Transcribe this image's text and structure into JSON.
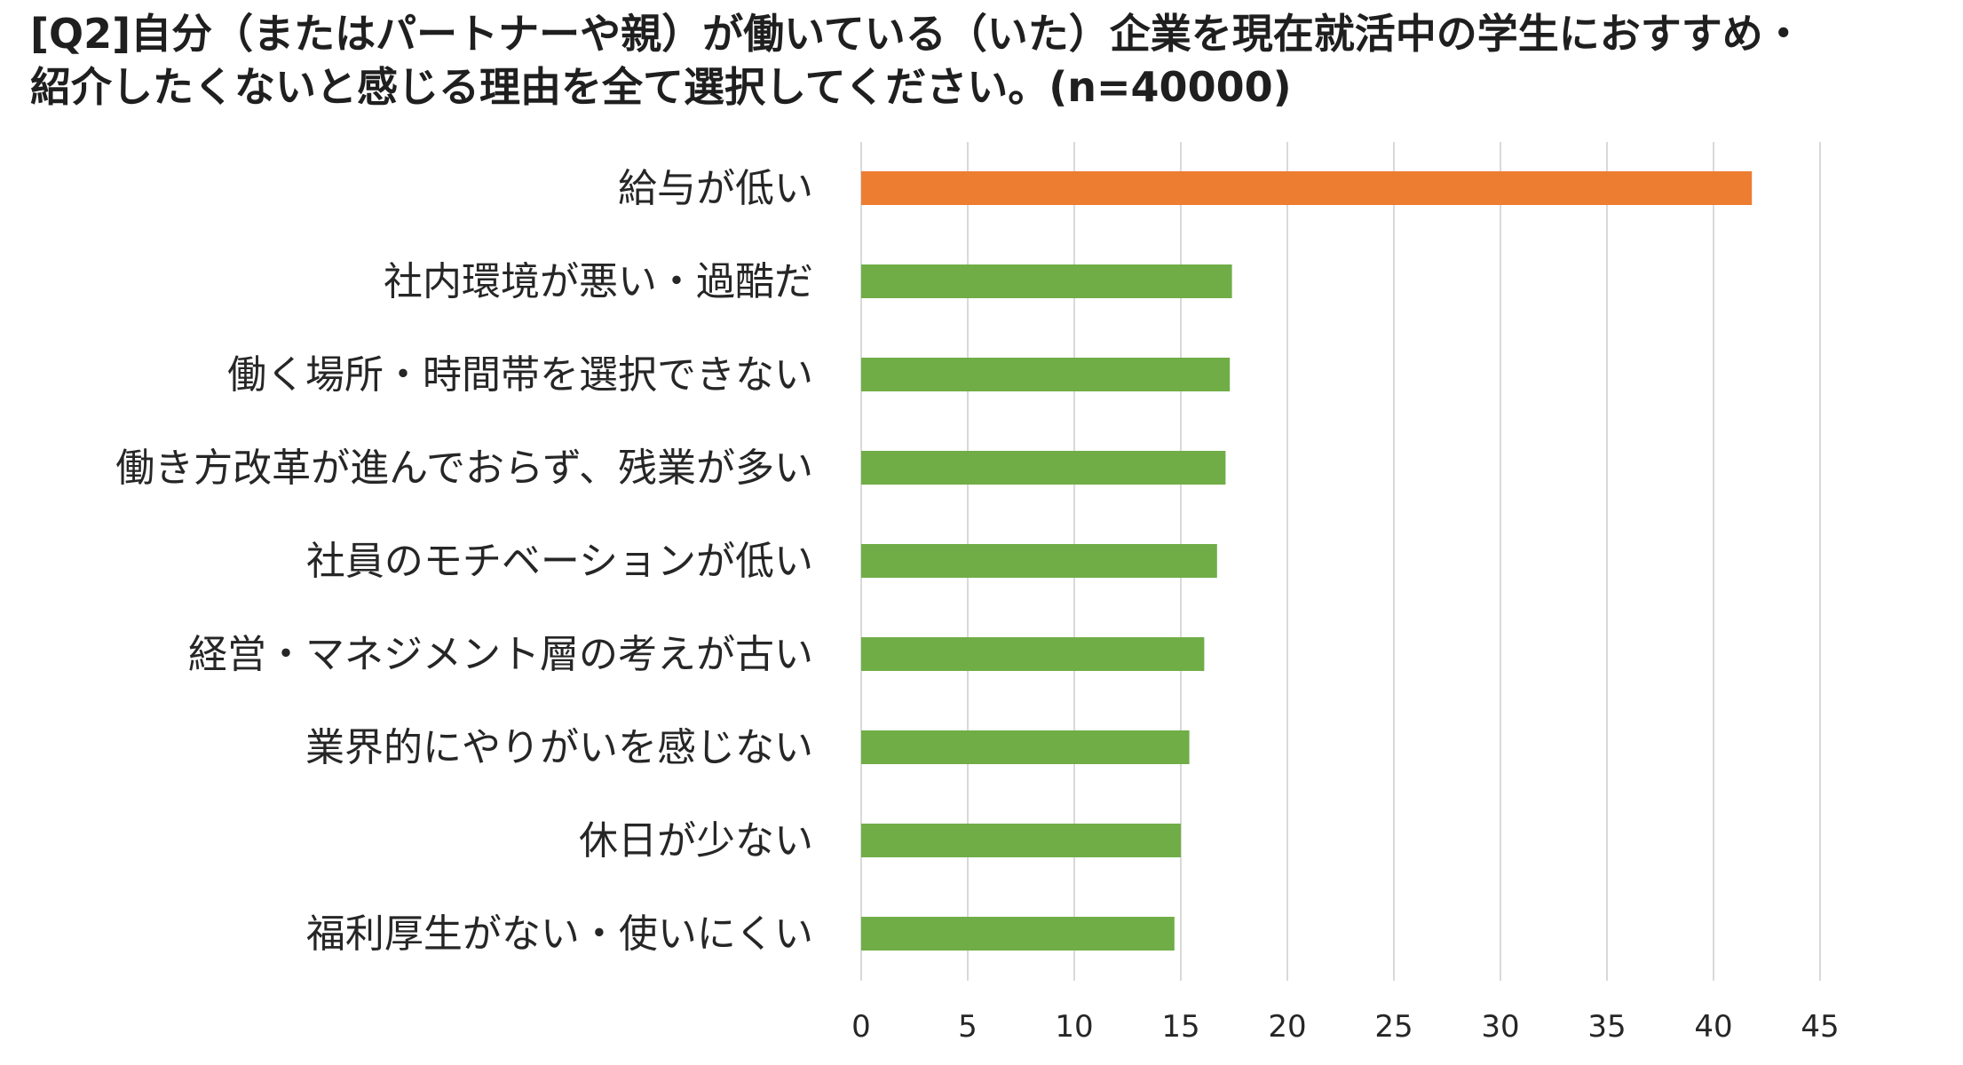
{
  "title": {
    "line1": "[Q2]自分（またはパートナーや親）が働いている（いた）企業を現在就活中の学生におすすめ・",
    "line2": "紹介したくないと感じる理由を全て選択してください。(n=40000)"
  },
  "chart_data": {
    "type": "bar",
    "orientation": "horizontal",
    "title": "[Q2]自分（またはパートナーや親）が働いている（いた）企業を現在就活中の学生におすすめ・紹介したくないと感じる理由を全て選択してください。(n=40000)",
    "xlabel": "",
    "ylabel": "",
    "categories": [
      "給与が低い",
      "社内環境が悪い・過酷だ",
      "働く場所・時間帯を選択できない",
      "働き方改革が進んでおらず、残業が多い",
      "社員のモチベーションが低い",
      "経営・マネジメント層の考えが古い",
      "業界的にやりがいを感じない",
      "休日が少ない",
      "福利厚生がない・使いにくい"
    ],
    "values": [
      41.8,
      17.4,
      17.3,
      17.1,
      16.7,
      16.1,
      15.4,
      15.0,
      14.7
    ],
    "bar_colors": [
      "#ED7D31",
      "#70AD47",
      "#70AD47",
      "#70AD47",
      "#70AD47",
      "#70AD47",
      "#70AD47",
      "#70AD47",
      "#70AD47"
    ],
    "xlim": [
      0,
      45
    ],
    "xticks": [
      "0",
      "5",
      "10",
      "15",
      "20",
      "25",
      "30",
      "35",
      "40",
      "45"
    ],
    "grid": true,
    "gridline_color": "#D9D9D9",
    "legend": "none"
  }
}
